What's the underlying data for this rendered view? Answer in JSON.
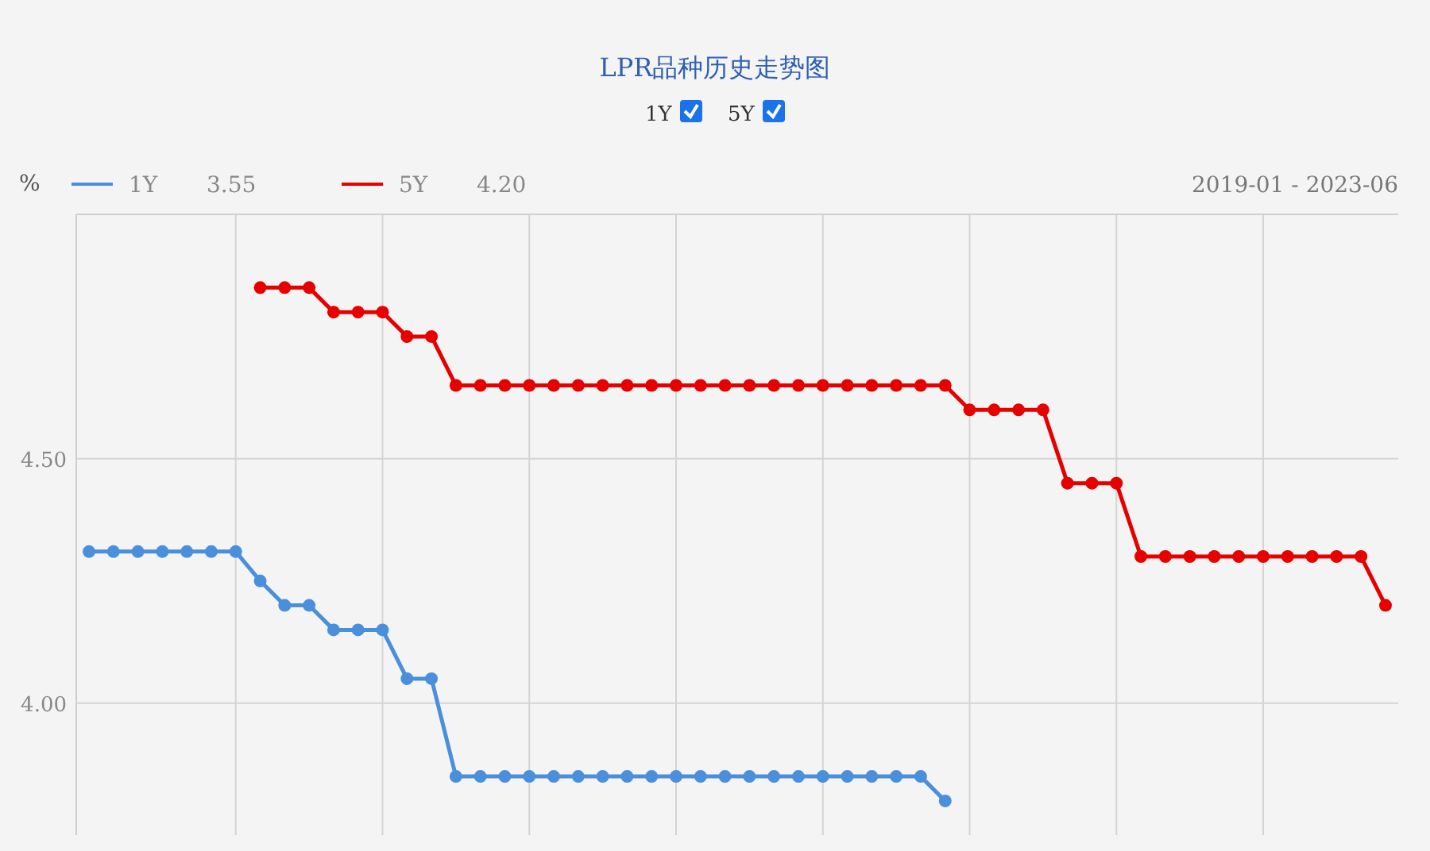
{
  "chart_data": {
    "type": "line",
    "title": "LPR品种历史走势图",
    "ylabel": "%",
    "categories": [
      null,
      null,
      null,
      null,
      null,
      null,
      null,
      null,
      null,
      null,
      null,
      null,
      null,
      null,
      null,
      null,
      null,
      null,
      null,
      null,
      null,
      null,
      null,
      null,
      null,
      null,
      null,
      null,
      null,
      null,
      null,
      null,
      null,
      null,
      null,
      null,
      null,
      null,
      null,
      null,
      null,
      null,
      null,
      null,
      null,
      null,
      null,
      null,
      null,
      null,
      null,
      null,
      null,
      null
    ],
    "series": [
      {
        "name": "1Y",
        "color": "#4a8fdb",
        "values": [
          4.31,
          4.31,
          4.31,
          4.31,
          4.31,
          4.31,
          4.31,
          4.25,
          4.2,
          4.2,
          4.15,
          4.15,
          4.15,
          4.05,
          4.05,
          3.85,
          3.85,
          3.85,
          3.85,
          3.85,
          3.85,
          3.85,
          3.85,
          3.85,
          3.85,
          3.85,
          3.85,
          3.85,
          3.85,
          3.85,
          3.85,
          3.85,
          3.85,
          3.85,
          3.85,
          3.8,
          null,
          null,
          null,
          null,
          null,
          null,
          null,
          null,
          null,
          null,
          null,
          null,
          null,
          null,
          null,
          null,
          null,
          null
        ]
      },
      {
        "name": "5Y",
        "color": "#e60000",
        "values": [
          null,
          null,
          null,
          null,
          null,
          null,
          null,
          4.85,
          4.85,
          4.85,
          4.8,
          4.8,
          4.8,
          4.75,
          4.75,
          4.65,
          4.65,
          4.65,
          4.65,
          4.65,
          4.65,
          4.65,
          4.65,
          4.65,
          4.65,
          4.65,
          4.65,
          4.65,
          4.65,
          4.65,
          4.65,
          4.65,
          4.65,
          4.65,
          4.65,
          4.65,
          4.6,
          4.6,
          4.6,
          4.6,
          4.45,
          4.45,
          4.45,
          4.3,
          4.3,
          4.3,
          4.3,
          4.3,
          4.3,
          4.3,
          4.3,
          4.3,
          4.3,
          4.2
        ]
      }
    ],
    "ylim": [
      3.73,
      5.0
    ],
    "yticks": [
      {
        "value": 4.0,
        "label": "4.00"
      },
      {
        "value": 4.5,
        "label": "4.50"
      }
    ],
    "annotations": [
      "3.55",
      "4.20",
      "2019-01 - 2023-06"
    ],
    "grid": true,
    "legend": "top",
    "marker": "circle",
    "line_style": "solid"
  }
}
